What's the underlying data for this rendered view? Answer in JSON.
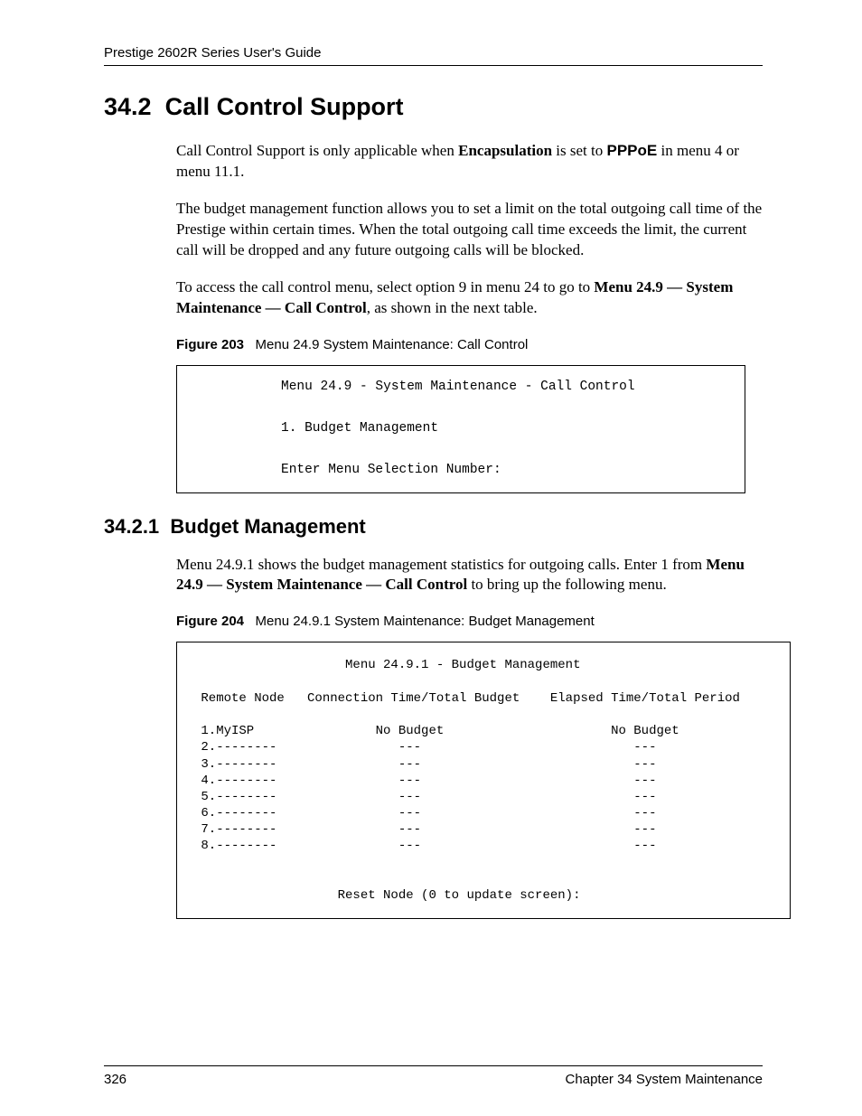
{
  "header": {
    "title": "Prestige 2602R Series User's Guide"
  },
  "section": {
    "number": "34.2",
    "title": "Call Control Support",
    "para1_a": "Call Control Support is only applicable when ",
    "para1_b": "Encapsulation",
    "para1_c": " is set to ",
    "para1_d": "PPPoE",
    "para1_e": " in menu 4 or menu 11.1.",
    "para2": "The budget management function allows you to set a limit on the total outgoing call time of the Prestige within certain times. When the total outgoing call time exceeds the limit, the current call will be dropped and any future outgoing calls will be blocked.",
    "para3_a": "To access the call control menu, select option 9 in menu 24 to go to ",
    "para3_b": "Menu 24.9 — System Maintenance — Call Control",
    "para3_c": ", as shown in the next table."
  },
  "figure203": {
    "label": "Figure 203",
    "caption": "Menu 24.9 System Maintenance: Call Control",
    "line1": "Menu 24.9 - System Maintenance - Call Control",
    "line2": "1. Budget Management",
    "line3": "Enter Menu Selection Number:"
  },
  "subsection": {
    "number": "34.2.1",
    "title": "Budget Management",
    "para1_a": "Menu 24.9.1 shows the budget management statistics for outgoing calls. Enter 1 from ",
    "para1_b": "Menu 24.9 — System Maintenance — Call Control",
    "para1_c": " to bring up the following menu."
  },
  "figure204": {
    "label": "Figure 204",
    "caption": "Menu 24.9.1 System Maintenance: Budget Management",
    "title": "Menu 24.9.1 - Budget Management",
    "col1": "Remote Node",
    "col2": "Connection Time/Total Budget",
    "col3": "Elapsed Time/Total Period",
    "rows": [
      {
        "node": "1.MyISP",
        "conn": "No Budget",
        "elapsed": "No Budget"
      },
      {
        "node": "2.--------",
        "conn": "---",
        "elapsed": "---"
      },
      {
        "node": "3.--------",
        "conn": "---",
        "elapsed": "---"
      },
      {
        "node": "4.--------",
        "conn": "---",
        "elapsed": "---"
      },
      {
        "node": "5.--------",
        "conn": "---",
        "elapsed": "---"
      },
      {
        "node": "6.--------",
        "conn": "---",
        "elapsed": "---"
      },
      {
        "node": "7.--------",
        "conn": "---",
        "elapsed": "---"
      },
      {
        "node": "8.--------",
        "conn": "---",
        "elapsed": "---"
      }
    ],
    "prompt": "Reset Node (0 to update screen):"
  },
  "footer": {
    "page": "326",
    "chapter": "Chapter 34 System Maintenance"
  }
}
